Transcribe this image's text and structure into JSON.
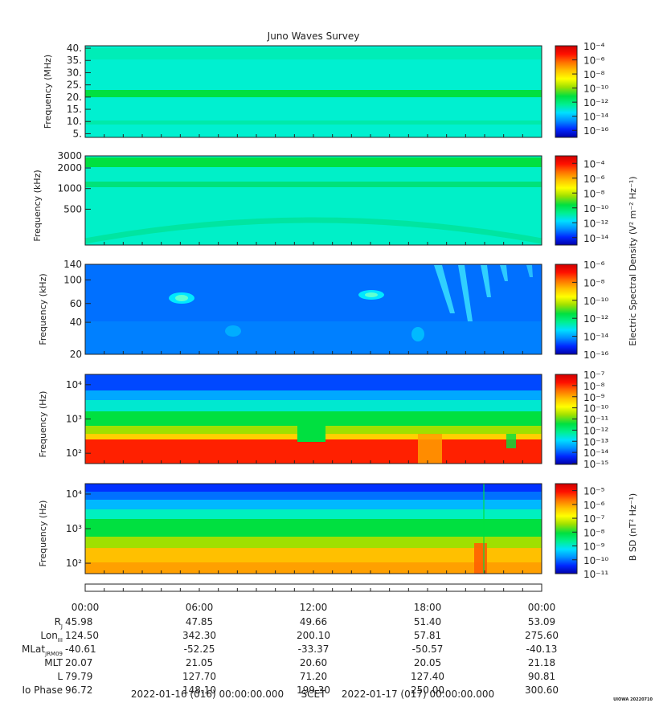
{
  "chart_data": {
    "type": "heatmap",
    "title": "Juno Waves Survey",
    "panels": [
      {
        "ylabel": "Frequency (MHz)",
        "yscale": "linear",
        "ylim": [
          3.5,
          41
        ],
        "yticks": [
          {
            "v": 5,
            "t": "5."
          },
          {
            "v": 10,
            "t": "10."
          },
          {
            "v": 15,
            "t": "15."
          },
          {
            "v": 20,
            "t": "20."
          },
          {
            "v": 25,
            "t": "25."
          },
          {
            "v": 30,
            "t": "30."
          },
          {
            "v": 35,
            "t": "35."
          },
          {
            "v": 40,
            "t": "40."
          }
        ],
        "colorbar": {
          "min_exp": -17,
          "max_exp": -4,
          "ticks": [
            -4,
            -6,
            -8,
            -10,
            -12,
            -14,
            -16
          ]
        }
      },
      {
        "ylabel": "Frequency (kHz)",
        "yscale": "log",
        "ylim": [
          150,
          3000
        ],
        "yticks": [
          {
            "v": 500,
            "t": "500"
          },
          {
            "v": 1000,
            "t": "1000"
          },
          {
            "v": 2000,
            "t": "2000"
          },
          {
            "v": 3000,
            "t": "3000"
          }
        ],
        "colorbar": {
          "min_exp": -15,
          "max_exp": -3,
          "ticks": [
            -4,
            -6,
            -8,
            -10,
            -12,
            -14
          ]
        }
      },
      {
        "ylabel": "Frequency (kHz)",
        "yscale": "log",
        "ylim": [
          20,
          140
        ],
        "yticks": [
          {
            "v": 20,
            "t": "20"
          },
          {
            "v": 40,
            "t": "40"
          },
          {
            "v": 60,
            "t": "60"
          },
          {
            "v": 100,
            "t": "100"
          },
          {
            "v": 140,
            "t": "140"
          }
        ],
        "colorbar": {
          "min_exp": -16,
          "max_exp": -6,
          "ticks": [
            -6,
            -8,
            -10,
            -12,
            -14,
            -16
          ]
        }
      },
      {
        "ylabel": "Frequency (Hz)",
        "yscale": "log",
        "ylim": [
          50,
          20000
        ],
        "yticks": [
          {
            "v": 100,
            "t": "10²"
          },
          {
            "v": 1000,
            "t": "10³"
          },
          {
            "v": 10000,
            "t": "10⁴"
          }
        ],
        "colorbar": {
          "min_exp": -15,
          "max_exp": -7,
          "ticks": [
            -7,
            -8,
            -9,
            -10,
            -11,
            -12,
            -13,
            -14,
            -15
          ]
        }
      },
      {
        "ylabel": "Frequency (Hz)",
        "yscale": "log",
        "ylim": [
          50,
          20000
        ],
        "yticks": [
          {
            "v": 100,
            "t": "10²"
          },
          {
            "v": 1000,
            "t": "10³"
          },
          {
            "v": 10000,
            "t": "10⁴"
          }
        ],
        "colorbar": {
          "min_exp": -11,
          "max_exp": -4.5,
          "ticks": [
            -5,
            -6,
            -7,
            -8,
            -9,
            -10,
            -11
          ]
        }
      }
    ],
    "colorbar_labels": {
      "electric": "Electric Spectral Density (V² m⁻² Hz⁻¹)",
      "magnetic": "B SD (nT² Hz⁻¹)"
    },
    "colormap": [
      "#0000aa",
      "#0028ff",
      "#0090ff",
      "#00e0ff",
      "#00f090",
      "#00e040",
      "#a0e000",
      "#ffff00",
      "#ffc000",
      "#ff7000",
      "#ff1000",
      "#d00000"
    ],
    "time_axis": {
      "ticks": [
        "00:00",
        "06:00",
        "12:00",
        "18:00",
        "00:00"
      ],
      "rows": [
        {
          "label": "R",
          "sub": "J",
          "values": [
            "45.98",
            "47.85",
            "49.66",
            "51.40",
            "53.09"
          ]
        },
        {
          "label": "Lon",
          "sub": "III",
          "values": [
            "124.50",
            "342.30",
            "200.10",
            "57.81",
            "275.60"
          ]
        },
        {
          "label": "MLat",
          "sub": "JRM09",
          "values": [
            "-40.61",
            "-52.25",
            "-33.37",
            "-50.57",
            "-40.13"
          ]
        },
        {
          "label": "MLT",
          "sub": "",
          "values": [
            "20.07",
            "21.05",
            "20.60",
            "20.05",
            "21.18"
          ]
        },
        {
          "label": "L",
          "sub": "",
          "values": [
            "79.79",
            "127.70",
            "71.20",
            "127.40",
            "90.81"
          ]
        },
        {
          "label": "Io Phase",
          "sub": "",
          "values": [
            "96.72",
            "148.10",
            "199.30",
            "250.00",
            "300.60"
          ]
        }
      ],
      "start": "2022-01-16 (016) 00:00:00.000",
      "scet": "SCET",
      "end": "2022-01-17 (017) 00:00:00.000"
    },
    "footer_tag": "UIOWA 20220710"
  }
}
